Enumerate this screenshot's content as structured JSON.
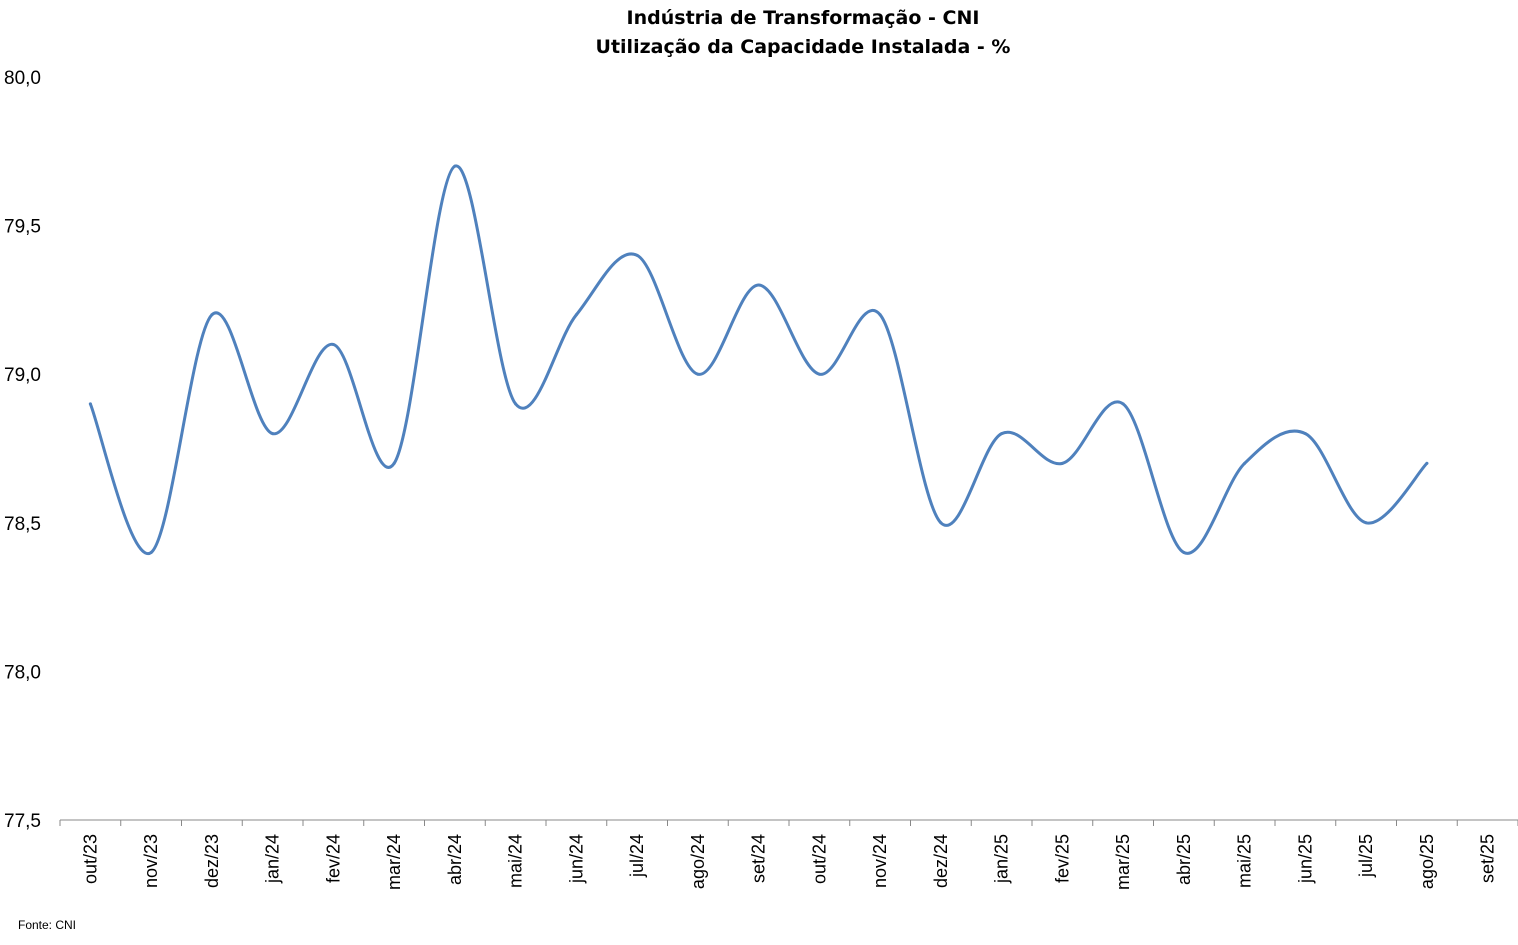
{
  "chart_data": {
    "type": "line",
    "title": "Indústria de Transformação - CNI",
    "subtitle": "Utilização da Capacidade Instalada - %",
    "xlabel": "",
    "ylabel": "",
    "ylim": [
      77.5,
      80.0
    ],
    "yticks": [
      "77,5",
      "78,0",
      "78,5",
      "79,0",
      "79,5",
      "80,0"
    ],
    "grid": false,
    "categories": [
      "out/23",
      "nov/23",
      "dez/23",
      "jan/24",
      "fev/24",
      "mar/24",
      "abr/24",
      "mai/24",
      "jun/24",
      "jul/24",
      "ago/24",
      "set/24",
      "out/24",
      "nov/24",
      "dez/24",
      "jan/25",
      "fev/25",
      "mar/25",
      "abr/25",
      "mai/25",
      "jun/25",
      "jul/25",
      "ago/25",
      "set/25"
    ],
    "series": [
      {
        "name": "Utilização da Capacidade Instalada",
        "color": "#4f81bd",
        "values": [
          78.9,
          78.4,
          79.2,
          78.8,
          79.1,
          78.7,
          79.7,
          78.9,
          79.2,
          79.4,
          79.0,
          79.3,
          79.0,
          79.2,
          78.5,
          78.8,
          78.7,
          78.9,
          78.4,
          78.7,
          78.8,
          78.5,
          78.7,
          null
        ]
      }
    ],
    "source": "Fonte: CNI"
  }
}
